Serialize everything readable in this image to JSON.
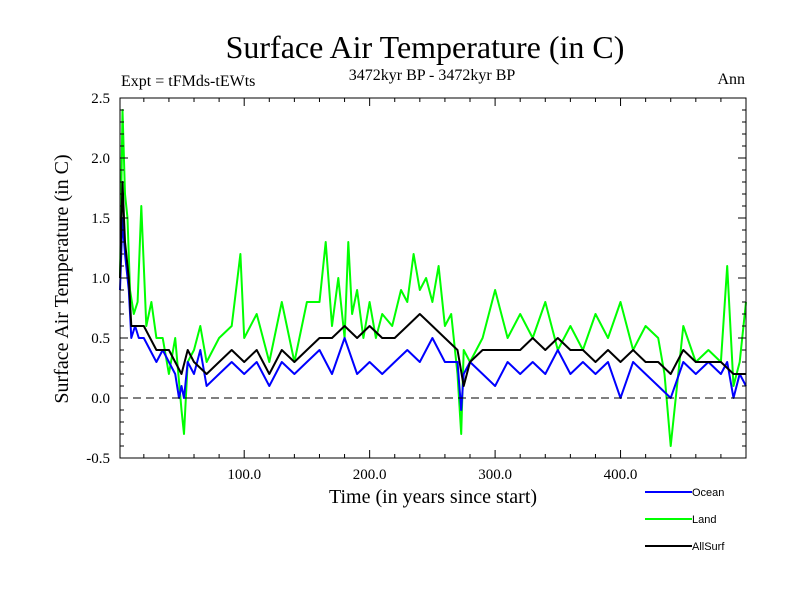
{
  "chart_data": {
    "type": "line",
    "title": "Surface Air Temperature (in C)",
    "subtitle": "3472kyr BP - 3472kyr BP",
    "experiment_label": "Expt = tFMds-tEWts",
    "season_label": "Ann",
    "xlabel": "Time (in years since start)",
    "ylabel": "Surface Air Temperature (in C)",
    "xlim": [
      1,
      500
    ],
    "ylim": [
      -0.5,
      2.5
    ],
    "x_ticks": [
      100,
      200,
      300,
      400
    ],
    "x_tick_labels": [
      "100.0",
      "200.0",
      "300.0",
      "400.0"
    ],
    "y_ticks": [
      -0.5,
      0.0,
      0.5,
      1.0,
      1.5,
      2.0,
      2.5
    ],
    "y_tick_labels": [
      "-0.5",
      "0.0",
      "0.5",
      "1.0",
      "1.5",
      "2.0",
      "2.5"
    ],
    "reference_line": 0.0,
    "legend": {
      "placement": "bottom-right-outside",
      "entries": [
        {
          "name": "Ocean",
          "color": "#0000ff"
        },
        {
          "name": "Land",
          "color": "#00ff00"
        },
        {
          "name": "AllSurf",
          "color": "#000000"
        }
      ]
    },
    "series": [
      {
        "name": "Land",
        "color": "#00ff00",
        "x": [
          1,
          3,
          5,
          7,
          9,
          12,
          15,
          18,
          22,
          26,
          30,
          35,
          40,
          45,
          50,
          52,
          55,
          60,
          65,
          70,
          80,
          90,
          97,
          100,
          110,
          120,
          130,
          140,
          150,
          160,
          165,
          170,
          175,
          180,
          183,
          186,
          190,
          195,
          200,
          205,
          210,
          218,
          225,
          230,
          235,
          240,
          245,
          250,
          255,
          260,
          265,
          270,
          273,
          275,
          280,
          290,
          300,
          310,
          320,
          330,
          340,
          350,
          360,
          370,
          380,
          390,
          400,
          410,
          420,
          430,
          435,
          440,
          450,
          460,
          470,
          480,
          485,
          490,
          495,
          500
        ],
        "values": [
          1.0,
          2.4,
          1.7,
          1.5,
          0.9,
          0.7,
          0.8,
          1.6,
          0.6,
          0.8,
          0.5,
          0.5,
          0.2,
          0.5,
          -0.1,
          -0.3,
          0.3,
          0.4,
          0.6,
          0.3,
          0.5,
          0.6,
          1.2,
          0.5,
          0.7,
          0.3,
          0.8,
          0.3,
          0.8,
          0.8,
          1.3,
          0.6,
          1.0,
          0.5,
          1.3,
          0.7,
          0.9,
          0.5,
          0.8,
          0.5,
          0.7,
          0.6,
          0.9,
          0.8,
          1.2,
          0.9,
          1.0,
          0.8,
          1.1,
          0.6,
          0.7,
          0.2,
          -0.3,
          0.4,
          0.3,
          0.5,
          0.9,
          0.5,
          0.7,
          0.5,
          0.8,
          0.4,
          0.6,
          0.4,
          0.7,
          0.5,
          0.8,
          0.4,
          0.6,
          0.5,
          0.2,
          -0.4,
          0.6,
          0.3,
          0.4,
          0.3,
          1.1,
          0.1,
          0.3,
          0.8
        ]
      },
      {
        "name": "Ocean",
        "color": "#0000ff",
        "x": [
          1,
          3,
          5,
          8,
          10,
          13,
          16,
          20,
          25,
          30,
          35,
          40,
          45,
          48,
          50,
          52,
          55,
          60,
          65,
          70,
          80,
          90,
          100,
          110,
          120,
          130,
          140,
          150,
          160,
          170,
          180,
          190,
          200,
          210,
          220,
          230,
          240,
          250,
          260,
          270,
          273,
          275,
          280,
          290,
          300,
          310,
          320,
          330,
          340,
          350,
          360,
          370,
          380,
          390,
          400,
          410,
          420,
          430,
          440,
          450,
          460,
          470,
          480,
          485,
          490,
          495,
          500
        ],
        "values": [
          0.9,
          1.5,
          1.2,
          0.9,
          0.5,
          0.6,
          0.5,
          0.5,
          0.4,
          0.3,
          0.4,
          0.3,
          0.2,
          0.0,
          0.1,
          0.0,
          0.3,
          0.2,
          0.4,
          0.1,
          0.2,
          0.3,
          0.2,
          0.3,
          0.1,
          0.3,
          0.2,
          0.3,
          0.4,
          0.2,
          0.5,
          0.2,
          0.3,
          0.2,
          0.3,
          0.4,
          0.3,
          0.5,
          0.3,
          0.3,
          -0.1,
          0.2,
          0.3,
          0.2,
          0.1,
          0.3,
          0.2,
          0.3,
          0.2,
          0.4,
          0.2,
          0.3,
          0.2,
          0.3,
          0.0,
          0.3,
          0.2,
          0.1,
          0.0,
          0.3,
          0.2,
          0.3,
          0.2,
          0.3,
          0.0,
          0.2,
          0.1
        ]
      },
      {
        "name": "AllSurf",
        "color": "#000000",
        "x": [
          1,
          3,
          5,
          8,
          10,
          13,
          16,
          20,
          25,
          30,
          35,
          40,
          45,
          50,
          55,
          60,
          70,
          80,
          90,
          100,
          110,
          120,
          130,
          140,
          150,
          160,
          170,
          180,
          190,
          200,
          210,
          220,
          230,
          240,
          250,
          260,
          270,
          275,
          280,
          290,
          300,
          310,
          320,
          330,
          340,
          350,
          360,
          370,
          380,
          390,
          400,
          410,
          420,
          430,
          440,
          450,
          460,
          470,
          480,
          490,
          500
        ],
        "values": [
          1.0,
          1.8,
          1.3,
          1.0,
          0.6,
          0.6,
          0.6,
          0.6,
          0.5,
          0.4,
          0.4,
          0.4,
          0.3,
          0.2,
          0.4,
          0.3,
          0.2,
          0.3,
          0.4,
          0.3,
          0.4,
          0.2,
          0.4,
          0.3,
          0.4,
          0.5,
          0.5,
          0.6,
          0.5,
          0.6,
          0.5,
          0.5,
          0.6,
          0.7,
          0.6,
          0.5,
          0.4,
          0.1,
          0.3,
          0.4,
          0.4,
          0.4,
          0.4,
          0.5,
          0.4,
          0.5,
          0.4,
          0.4,
          0.3,
          0.4,
          0.3,
          0.4,
          0.3,
          0.3,
          0.2,
          0.4,
          0.3,
          0.3,
          0.3,
          0.2,
          0.2
        ]
      }
    ]
  }
}
